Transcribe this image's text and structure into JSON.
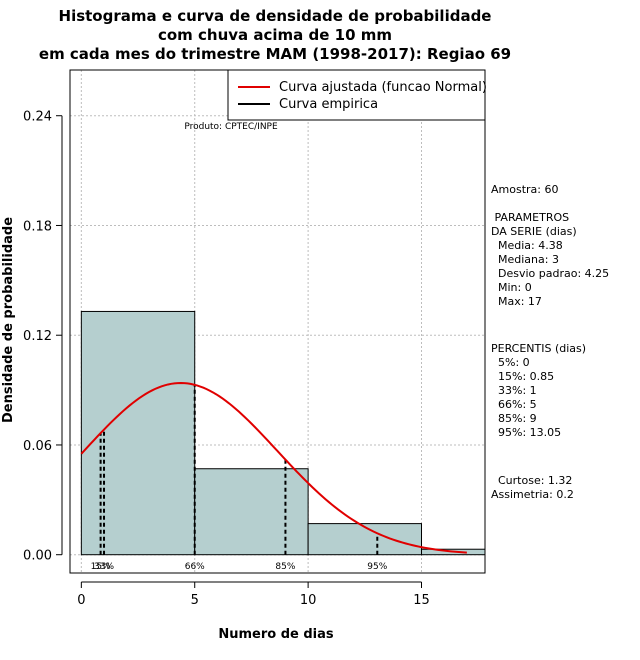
{
  "chart_data": {
    "type": "histogram",
    "title_lines": [
      "Histograma e curva de densidade de probabilidade",
      "com chuva acima de 10 mm",
      "em cada mes do trimestre MAM (1998-2017): Regiao 69"
    ],
    "xlabel": "Numero de dias",
    "ylabel": "Densidade de probabilidade",
    "xlim": [
      -0.5,
      17.8
    ],
    "ylim": [
      -0.01,
      0.265
    ],
    "x_ticks": [
      0,
      5,
      10,
      15
    ],
    "x_tick_labels": [
      "0",
      "5",
      "10",
      "15"
    ],
    "y_ticks": [
      0.0,
      0.06,
      0.12,
      0.18,
      0.24
    ],
    "y_tick_labels": [
      "0.00",
      "0.06",
      "0.12",
      "0.18",
      "0.24"
    ],
    "grid": true,
    "bins": [
      {
        "from": 0,
        "to": 5,
        "density": 0.133
      },
      {
        "from": 5,
        "to": 10,
        "density": 0.047
      },
      {
        "from": 10,
        "to": 15,
        "density": 0.017
      },
      {
        "from": 15,
        "to": 17.8,
        "density": 0.003
      }
    ],
    "bar_color": "#b5cfcf",
    "normal_fit": {
      "mean": 4.38,
      "sd": 4.25,
      "x_from": 0,
      "x_to": 17,
      "color": "#e00000"
    },
    "percentile_lines": [
      {
        "x": 0.85,
        "label": "15%"
      },
      {
        "x": 1,
        "label": "33%"
      },
      {
        "x": 5,
        "label": "66%"
      },
      {
        "x": 9,
        "label": "85%"
      },
      {
        "x": 13.05,
        "label": "95%"
      }
    ],
    "legend": [
      {
        "label": "Curva ajustada (funcao Normal)",
        "color": "#e00000"
      },
      {
        "label": "Curva empirica",
        "color": "#000000"
      }
    ],
    "legend_position": "top-right",
    "produto": "Produto: CPTEC/INPE"
  },
  "stats": {
    "amostra": "Amostra: 60",
    "parametros_lines": [
      " PARAMETROS",
      "DA SERIE (dias)",
      "  Media: 4.38",
      "  Mediana: 3",
      "  Desvio padrao: 4.25",
      "  Min: 0",
      "  Max: 17"
    ],
    "percentis_lines": [
      "PERCENTIS (dias)",
      "  5%: 0",
      "  15%: 0.85",
      "  33%: 1",
      "  66%: 5",
      "  85%: 9",
      "  95%: 13.05"
    ],
    "forma_lines": [
      "  Curtose: 1.32",
      "Assimetria: 0.2"
    ]
  }
}
